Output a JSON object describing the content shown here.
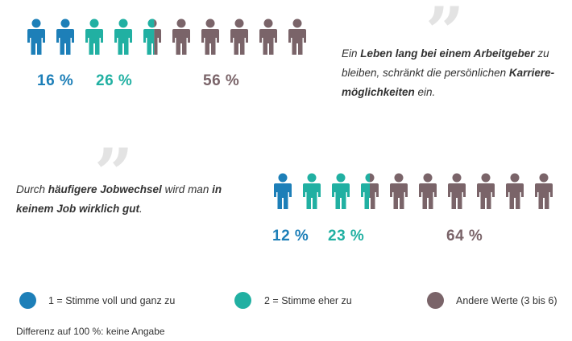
{
  "colors": {
    "blue": "#1d7fb8",
    "teal": "#21b0a2",
    "mauve": "#7a6469"
  },
  "chart_data": [
    {
      "type": "pictogram",
      "total_icons": 10,
      "categories": [
        "1 = Stimme voll und ganz zu",
        "2 = Stimme eher zu",
        "Andere Werte (3 bis 6)"
      ],
      "values": [
        16,
        26,
        56
      ],
      "labels": [
        "16 %",
        "26 %",
        "56 %"
      ],
      "icon_counts": [
        2,
        2.6,
        5.4
      ],
      "quote_parts": [
        {
          "t": "Ein ",
          "b": false
        },
        {
          "t": "Leben lang bei einem Arbeitgeber",
          "b": true
        },
        {
          "t": " zu bleiben, schränkt die persönlichen ",
          "b": false
        },
        {
          "t": "Karriere-möglichkeiten",
          "b": true
        },
        {
          "t": " ein.",
          "b": false
        }
      ]
    },
    {
      "type": "pictogram",
      "total_icons": 10,
      "categories": [
        "1 = Stimme voll und ganz zu",
        "2 = Stimme eher zu",
        "Andere Werte (3 bis 6)"
      ],
      "values": [
        12,
        23,
        64
      ],
      "labels": [
        "12 %",
        "23 %",
        "64 %"
      ],
      "icon_counts": [
        1,
        2.5,
        6.5
      ],
      "quote_parts": [
        {
          "t": "Durch ",
          "b": false
        },
        {
          "t": "häufigere Jobwechsel",
          "b": true
        },
        {
          "t": " wird man ",
          "b": false
        },
        {
          "t": "in keinem Job wirklich gut",
          "b": true
        },
        {
          "t": ".",
          "b": false
        }
      ]
    }
  ],
  "legend": [
    {
      "label": "1 = Stimme voll und ganz zu",
      "color": "#1d7fb8"
    },
    {
      "label": "2 = Stimme eher zu",
      "color": "#21b0a2"
    },
    {
      "label": "Andere Werte (3 bis 6)",
      "color": "#7a6469"
    }
  ],
  "footnote": "Differenz auf 100 %: keine Angabe"
}
